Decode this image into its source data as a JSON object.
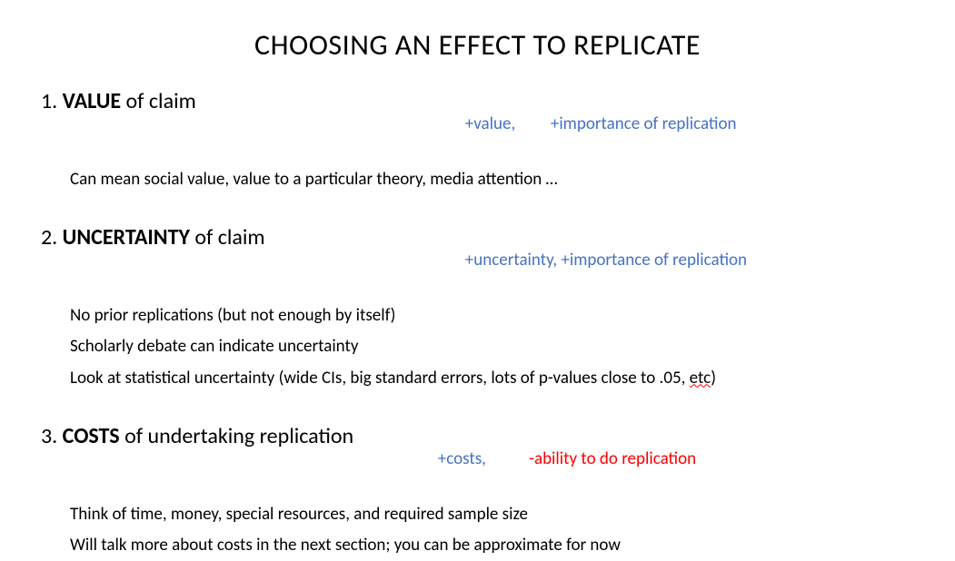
{
  "title": "CHOOSING AN EFFECT TO REPLICATE",
  "sections": [
    {
      "number": "1.",
      "keyword": "VALUE",
      "rest": " of claim",
      "ann_left": "+value,",
      "ann_gap": "         ",
      "ann_right": "+importance of replication",
      "ann_right_color": "#4472c4",
      "bullets": [
        "Can mean social value, value to a particular theory, media attention …"
      ]
    },
    {
      "number": "2.",
      "keyword": "UNCERTAINTY",
      "rest": " of claim",
      "ann_left": "+uncertainty,",
      "ann_gap": " ",
      "ann_right": "+importance of replication",
      "ann_right_color": "#4472c4",
      "bullets": [
        "No prior replications (but not enough by itself)",
        "Scholarly debate can indicate uncertainty",
        "Look at statistical uncertainty (wide CIs, big standard errors, lots of p-values close to .05, etc)"
      ],
      "etc_wavy": true
    },
    {
      "number": "3.",
      "keyword": "COSTS",
      "rest": " of undertaking replication",
      "ann_left": "+costs,",
      "ann_gap": "           ",
      "ann_right": "-ability to do replication",
      "ann_right_color": "#ff0000",
      "bullets": [
        "Think of time, money, special resources, and required sample size",
        "Will talk more about costs in the next section; you can be approximate for now"
      ]
    }
  ],
  "colors": {
    "blue": "#4472c4",
    "red": "#ff0000",
    "text": "#000000",
    "background": "#ffffff"
  },
  "typography": {
    "title_fontsize": 32,
    "heading_fontsize": 24,
    "body_fontsize": 19,
    "annotation_fontsize": 19,
    "font_family": "Calibri"
  }
}
